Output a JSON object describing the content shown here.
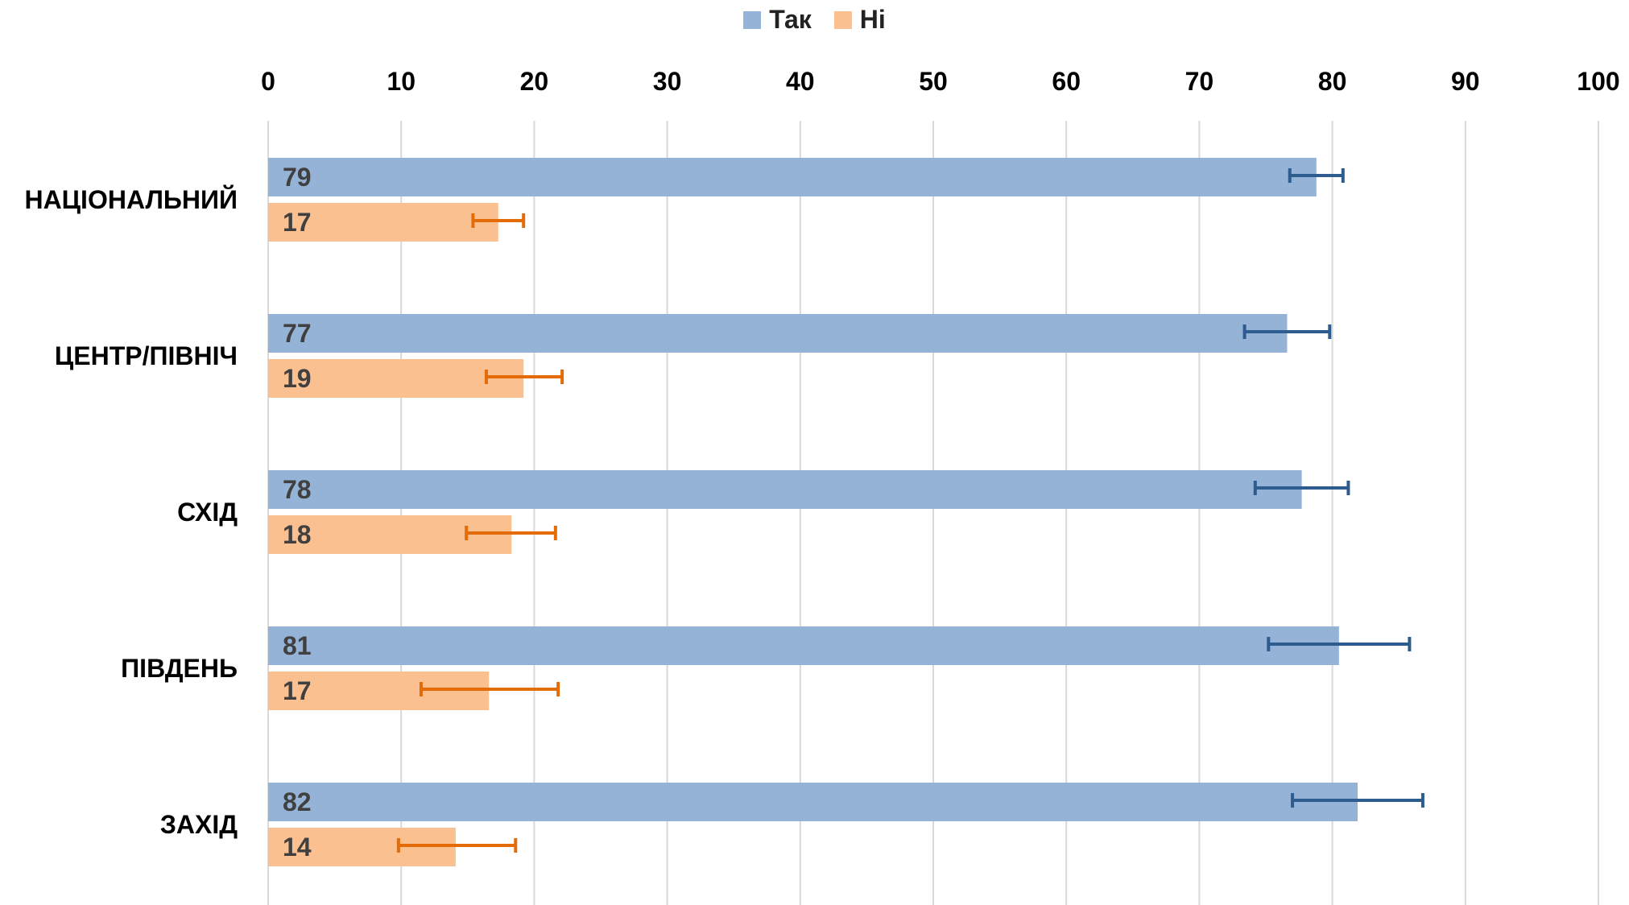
{
  "chart_data": {
    "type": "bar",
    "orientation": "horizontal",
    "title": "",
    "xlabel": "",
    "ylabel": "",
    "xlim": [
      0,
      100
    ],
    "x_ticks": [
      0,
      10,
      20,
      30,
      40,
      50,
      60,
      70,
      80,
      90,
      100
    ],
    "x_axis_position": "top",
    "grid": true,
    "legend": "top-center",
    "categories": [
      "НАЦІОНАЛЬНИЙ",
      "ЦЕНТР/ПІВНІЧ",
      "СХІД",
      "ПІВДЕНЬ",
      "ЗАХІД"
    ],
    "series": [
      {
        "name": "Так",
        "color": "#95b3d7",
        "error_color": "#2e5c8f",
        "values": [
          79,
          77,
          78,
          81,
          82
        ],
        "bar_lengths": [
          78.8,
          76.6,
          77.7,
          80.5,
          81.9
        ],
        "error_low": [
          76.8,
          73.4,
          74.2,
          75.2,
          77.0
        ],
        "error_high": [
          80.8,
          79.8,
          81.2,
          85.8,
          86.8
        ]
      },
      {
        "name": "Ні",
        "color": "#fac090",
        "error_color": "#e36c09",
        "values": [
          17,
          19,
          18,
          17,
          14
        ],
        "bar_lengths": [
          17.3,
          19.2,
          18.3,
          16.6,
          14.1
        ],
        "error_low": [
          15.4,
          16.4,
          14.9,
          11.5,
          9.8
        ],
        "error_high": [
          19.2,
          22.1,
          21.6,
          21.8,
          18.6
        ]
      }
    ]
  }
}
